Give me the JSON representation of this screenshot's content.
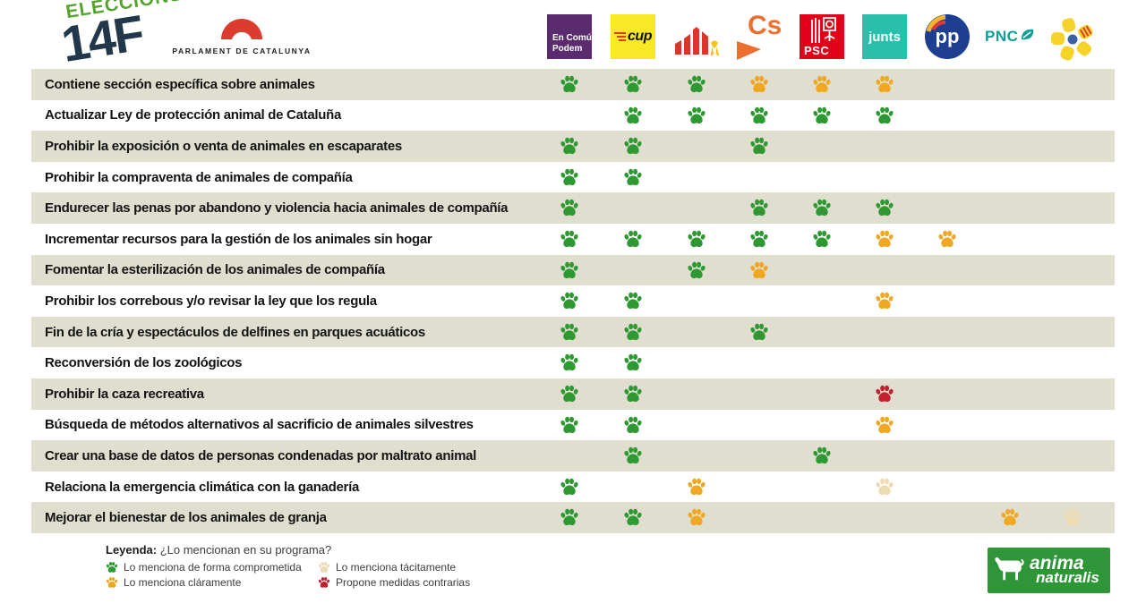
{
  "header": {
    "eleccions_line1": "ELECCIONS",
    "eleccions_line2": "14F",
    "parlament_label": "PARLAMENT DE CATALUNYA"
  },
  "parties": {
    "ecp": {
      "name": "En Comú Podem",
      "line1": "En Comú",
      "line2": "Podem"
    },
    "cup": {
      "name": "CUP",
      "label": "cup"
    },
    "erc": {
      "name": "ERC"
    },
    "cs": {
      "name": "Cs",
      "label": "Cs"
    },
    "psc": {
      "name": "PSC",
      "label": "PSC"
    },
    "junts": {
      "name": "Junts",
      "label": "junts"
    },
    "pp": {
      "name": "PP",
      "label": "pp"
    },
    "pnc": {
      "name": "PNC",
      "label": "PNC"
    },
    "pdecat": {
      "name": "PDeCAT"
    }
  },
  "chart_data": {
    "type": "table",
    "title": "¿Lo mencionan en su programa?",
    "columns": [
      "En Comú Podem",
      "CUP",
      "ERC",
      "Cs",
      "PSC",
      "Junts",
      "PP",
      "PNC",
      "PDeCAT"
    ],
    "rows": [
      "Contiene sección específica sobre animales",
      "Actualizar Ley de protección animal de Cataluña",
      "Prohibir la exposición o venta de animales en escaparates",
      "Prohibir la compraventa de animales de compañía",
      "Endurecer las penas por abandono y violencia hacia animales de compañía",
      "Incrementar recursos para la gestión de los animales sin hogar",
      "Fomentar la esterilización de los animales de compañía",
      "Prohibir los correbous y/o revisar la ley que los regula",
      "Fin de la cría y espectáculos de delfines en parques acuáticos",
      "Reconversión de los zoológicos",
      "Prohibir la caza recreativa",
      "Búsqueda de métodos alternativos al sacrificio de animales silvestres",
      "Crear una base de datos de personas condenadas por maltrato animal",
      "Relaciona la emergencia climática con la ganadería",
      "Mejorar el bienestar de los animales de granja"
    ],
    "values": [
      [
        "comprometida",
        "comprometida",
        "comprometida",
        "claramente",
        "claramente",
        "claramente",
        null,
        null,
        null
      ],
      [
        null,
        "comprometida",
        "comprometida",
        "comprometida",
        "comprometida",
        "comprometida",
        null,
        null,
        null
      ],
      [
        "comprometida",
        "comprometida",
        null,
        "comprometida",
        null,
        null,
        null,
        null,
        null
      ],
      [
        "comprometida",
        "comprometida",
        null,
        null,
        null,
        null,
        null,
        null,
        null
      ],
      [
        "comprometida",
        null,
        null,
        "comprometida",
        "comprometida",
        "comprometida",
        null,
        null,
        null
      ],
      [
        "comprometida",
        "comprometida",
        "comprometida",
        "comprometida",
        "comprometida",
        "claramente",
        "claramente",
        null,
        null
      ],
      [
        "comprometida",
        null,
        "comprometida",
        "claramente",
        null,
        null,
        null,
        null,
        null
      ],
      [
        "comprometida",
        "comprometida",
        null,
        null,
        null,
        "claramente",
        null,
        null,
        null
      ],
      [
        "comprometida",
        "comprometida",
        null,
        "comprometida",
        null,
        null,
        null,
        null,
        null
      ],
      [
        "comprometida",
        "comprometida",
        null,
        null,
        null,
        null,
        null,
        null,
        null
      ],
      [
        "comprometida",
        "comprometida",
        null,
        null,
        null,
        "contrarias",
        null,
        null,
        null
      ],
      [
        "comprometida",
        "comprometida",
        null,
        null,
        null,
        "claramente",
        null,
        null,
        null
      ],
      [
        null,
        "comprometida",
        null,
        null,
        "comprometida",
        null,
        null,
        null,
        null
      ],
      [
        "comprometida",
        null,
        "claramente",
        null,
        null,
        "tacitamente",
        null,
        null,
        null
      ],
      [
        "comprometida",
        "comprometida",
        "claramente",
        null,
        null,
        null,
        null,
        "claramente",
        "tacitamente"
      ]
    ]
  },
  "legend": {
    "title_bold": "Leyenda:",
    "title_rest": " ¿Lo mencionan en su programa?",
    "items": [
      {
        "code": "comprometida",
        "label": "Lo menciona de forma comprometida",
        "color": "#2e9833"
      },
      {
        "code": "claramente",
        "label": "Lo menciona cláramente",
        "color": "#f0a722"
      },
      {
        "code": "tacitamente",
        "label": "Lo menciona tácitamente",
        "color": "#eddcb2"
      },
      {
        "code": "contrarias",
        "label": "Propone medidas contrarias",
        "color": "#c3202f"
      }
    ]
  },
  "footer_logo": {
    "line1": "anima",
    "line2": "naturalis"
  },
  "colors": {
    "row_stripe": "#dfdecf",
    "ecp_purple": "#5b2b70",
    "cup_yellow": "#f8e825",
    "erc_red": "#d8372a",
    "cs_orange": "#ec6f30",
    "psc_red": "#e2001a",
    "junts_teal": "#29c0ab",
    "pp_blue": "#1e3e8f",
    "pnc_teal": "#0c9f9b",
    "pdecat_yellow": "#f6d32b",
    "anima_green": "#2e9639"
  }
}
